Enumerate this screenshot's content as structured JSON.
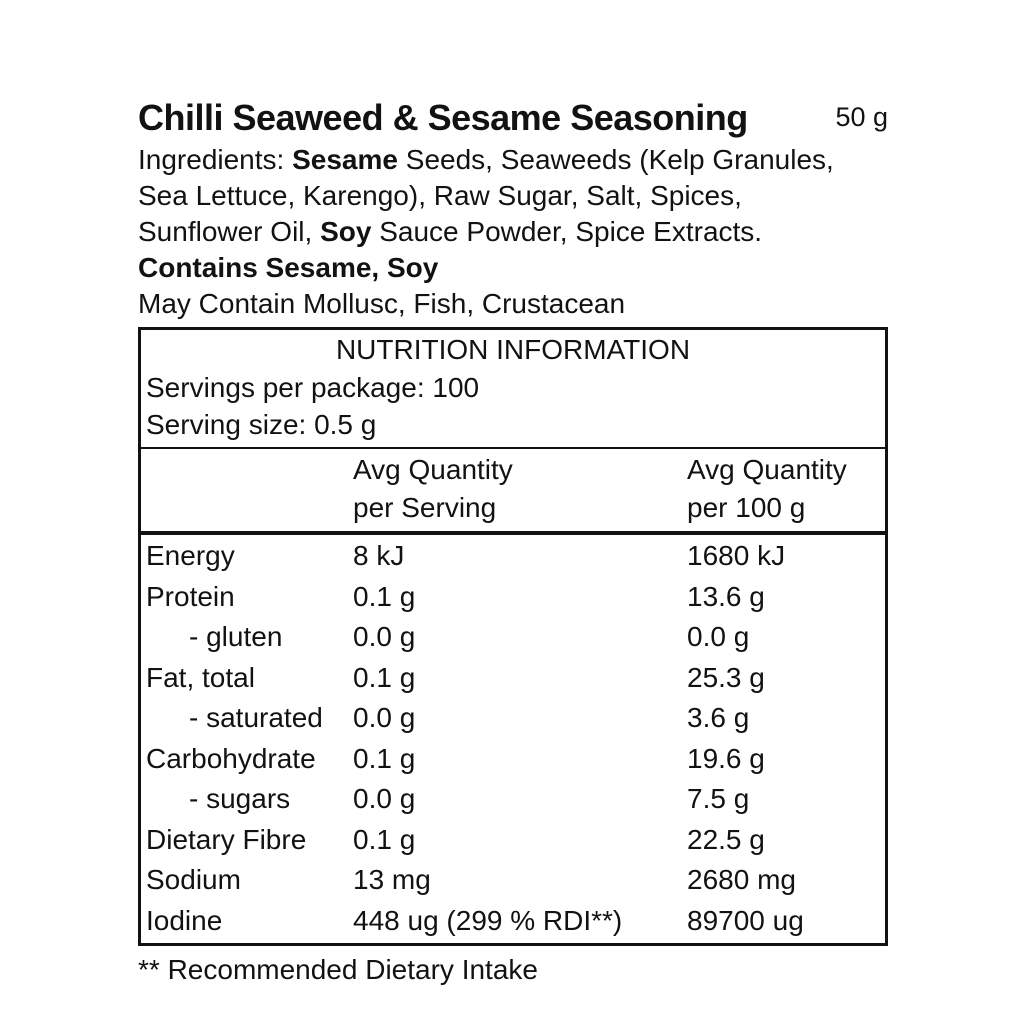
{
  "colors": {
    "text": "#121212",
    "background": "#ffffff",
    "table_border": "#121212"
  },
  "product": {
    "title": "Chilli Seaweed & Sesame Seasoning",
    "net_weight": "50 g"
  },
  "ingredients": {
    "lines": [
      [
        {
          "t": "Ingredients: ",
          "b": false
        },
        {
          "t": "Sesame",
          "b": true
        },
        {
          "t": " Seeds, Seaweeds (Kelp Granules,",
          "b": false
        }
      ],
      [
        {
          "t": "Sea Lettuce, Karengo), Raw Sugar, Salt, Spices,",
          "b": false
        }
      ],
      [
        {
          "t": "Sunflower Oil, ",
          "b": false
        },
        {
          "t": "Soy",
          "b": true
        },
        {
          "t": " Sauce Powder, Spice Extracts.",
          "b": false
        }
      ]
    ]
  },
  "contains_statement": "Contains Sesame, Soy",
  "may_contain_statement": "May Contain Mollusc, Fish, Crustacean",
  "nutrition_table": {
    "title": "NUTRITION INFORMATION",
    "servings_per_package": "Servings per package: 100",
    "serving_size": "Serving size: 0.5 g",
    "col_per_serving": {
      "line1": "Avg Quantity",
      "line2": "per Serving"
    },
    "col_per_100g": {
      "line1": "Avg Quantity",
      "line2": "per 100 g"
    },
    "rows": [
      {
        "name": "Energy",
        "per_serving": "8 kJ",
        "per_100g": "1680 kJ",
        "indent": false
      },
      {
        "name": "Protein",
        "per_serving": "0.1 g",
        "per_100g": "13.6 g",
        "indent": false
      },
      {
        "name": "- gluten",
        "per_serving": "0.0 g",
        "per_100g": "0.0 g",
        "indent": true
      },
      {
        "name": "Fat, total",
        "per_serving": "0.1 g",
        "per_100g": "25.3 g",
        "indent": false
      },
      {
        "name": "- saturated",
        "per_serving": "0.0 g",
        "per_100g": "3.6 g",
        "indent": true
      },
      {
        "name": "Carbohydrate",
        "per_serving": "0.1 g",
        "per_100g": "19.6 g",
        "indent": false
      },
      {
        "name": "- sugars",
        "per_serving": "0.0 g",
        "per_100g": "7.5 g",
        "indent": true
      },
      {
        "name": "Dietary Fibre",
        "per_serving": "0.1 g",
        "per_100g": "22.5 g",
        "indent": false
      },
      {
        "name": "Sodium",
        "per_serving": "13 mg",
        "per_100g": "2680 mg",
        "indent": false
      },
      {
        "name": "Iodine",
        "per_serving": "448 ug (299 % RDI**)",
        "per_100g": "89700 ug",
        "indent": false
      }
    ]
  },
  "footnote": "** Recommended Dietary Intake"
}
